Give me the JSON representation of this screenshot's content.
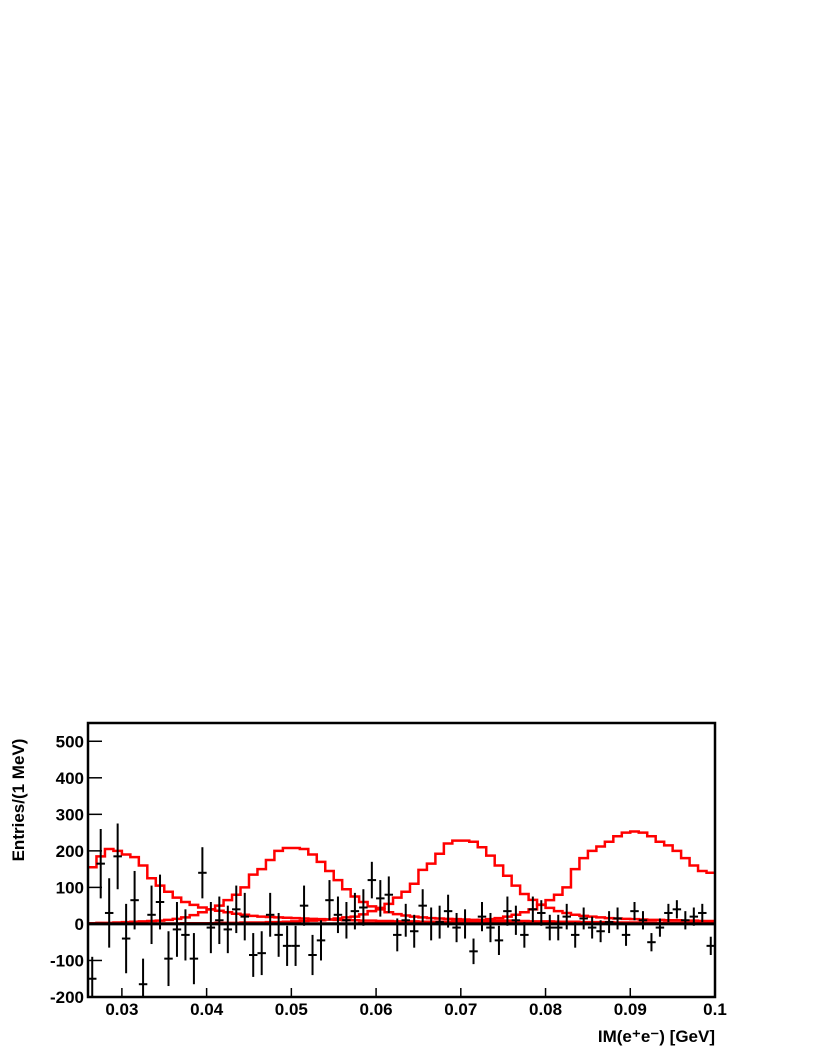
{
  "chart_data": {
    "type": "histogram",
    "xlabel": "IM(e⁺e⁻) [GeV]",
    "ylabel": "Entries/(1 MeV)",
    "xlim": [
      0.026,
      0.1
    ],
    "ylim": [
      -200,
      550
    ],
    "xticks": [
      0.03,
      0.04,
      0.05,
      0.06,
      0.07,
      0.08,
      0.09,
      0.1
    ],
    "yticks": [
      -200,
      -100,
      0,
      100,
      200,
      300,
      400,
      500
    ],
    "zero_line": true,
    "x": [
      0.0265,
      0.0275,
      0.0285,
      0.0295,
      0.0305,
      0.0315,
      0.0325,
      0.0335,
      0.0345,
      0.0355,
      0.0365,
      0.0375,
      0.0385,
      0.0395,
      0.0405,
      0.0415,
      0.0425,
      0.0435,
      0.0445,
      0.0455,
      0.0465,
      0.0475,
      0.0485,
      0.0495,
      0.0505,
      0.0515,
      0.0525,
      0.0535,
      0.0545,
      0.0555,
      0.0565,
      0.0575,
      0.0585,
      0.0595,
      0.0605,
      0.0615,
      0.0625,
      0.0635,
      0.0645,
      0.0655,
      0.0665,
      0.0675,
      0.0685,
      0.0695,
      0.0705,
      0.0715,
      0.0725,
      0.0735,
      0.0745,
      0.0755,
      0.0765,
      0.0775,
      0.0785,
      0.0795,
      0.0805,
      0.0815,
      0.0825,
      0.0835,
      0.0845,
      0.0855,
      0.0865,
      0.0875,
      0.0885,
      0.0895,
      0.0905,
      0.0915,
      0.0925,
      0.0935,
      0.0945,
      0.0955,
      0.0965,
      0.0975,
      0.0985,
      0.0995
    ],
    "series": [
      {
        "color": "#ff0000",
        "style": "step",
        "values": [
          155,
          185,
          205,
          200,
          190,
          183,
          160,
          125,
          105,
          88,
          72,
          60,
          52,
          45,
          40,
          36,
          32,
          28,
          25,
          22,
          20,
          19,
          18,
          17,
          16,
          15,
          14,
          13,
          12,
          11,
          10,
          10,
          9,
          9,
          8,
          8,
          7,
          7,
          7,
          6,
          6,
          6,
          5,
          5,
          5,
          5,
          4,
          4,
          4,
          4,
          4,
          3,
          3,
          3,
          3,
          3,
          3,
          3,
          2,
          2,
          2,
          2,
          2,
          2,
          2,
          2,
          2,
          2,
          2,
          1,
          1,
          1,
          1,
          1
        ]
      },
      {
        "color": "#ff0000",
        "style": "step",
        "values": [
          2,
          3,
          3,
          4,
          5,
          6,
          7,
          8,
          9,
          11,
          14,
          18,
          24,
          32,
          40,
          50,
          65,
          80,
          100,
          135,
          150,
          175,
          200,
          208,
          208,
          205,
          190,
          170,
          145,
          120,
          95,
          75,
          60,
          48,
          40,
          32,
          27,
          23,
          20,
          18,
          16,
          15,
          14,
          13,
          12,
          11,
          10,
          10,
          9,
          9,
          8,
          8,
          7,
          7,
          7,
          6,
          6,
          6,
          5,
          5,
          5,
          5,
          4,
          4,
          4,
          4,
          4,
          3,
          3,
          3,
          3,
          3,
          3,
          2
        ]
      },
      {
        "color": "#ff0000",
        "style": "step",
        "values": [
          1,
          1,
          1,
          1,
          1,
          1,
          1,
          1,
          1,
          1,
          1,
          2,
          2,
          2,
          2,
          3,
          3,
          3,
          4,
          4,
          4,
          5,
          5,
          6,
          7,
          8,
          9,
          10,
          12,
          15,
          18,
          20,
          26,
          35,
          44,
          55,
          72,
          88,
          110,
          148,
          165,
          192,
          220,
          228,
          228,
          225,
          210,
          187,
          160,
          132,
          105,
          82,
          66,
          53,
          44,
          35,
          30,
          25,
          22,
          20,
          18,
          16,
          15,
          14,
          13,
          12,
          11,
          11,
          10,
          10,
          9,
          9,
          8,
          8
        ]
      },
      {
        "color": "#ff0000",
        "style": "step",
        "values": [
          1,
          1,
          1,
          1,
          1,
          1,
          1,
          1,
          1,
          1,
          1,
          1,
          1,
          1,
          1,
          1,
          1,
          1,
          1,
          1,
          1,
          1,
          1,
          1,
          1,
          1,
          1,
          1,
          1,
          1,
          1,
          1,
          2,
          2,
          2,
          2,
          3,
          3,
          3,
          4,
          4,
          5,
          6,
          7,
          8,
          9,
          11,
          13,
          16,
          20,
          25,
          32,
          40,
          52,
          65,
          80,
          100,
          150,
          180,
          200,
          212,
          225,
          240,
          250,
          253,
          250,
          240,
          225,
          215,
          200,
          180,
          160,
          145,
          140
        ]
      },
      {
        "color": "#000000",
        "style": "errorbar",
        "values": [
          -150,
          165,
          30,
          185,
          -40,
          65,
          -165,
          25,
          60,
          -95,
          -15,
          -30,
          -95,
          140,
          -10,
          10,
          -15,
          40,
          20,
          -85,
          -80,
          25,
          -30,
          -60,
          -60,
          50,
          -85,
          -45,
          65,
          25,
          10,
          35,
          45,
          120,
          70,
          80,
          -30,
          10,
          -20,
          50,
          0,
          5,
          35,
          -10,
          0,
          -75,
          20,
          -10,
          -45,
          35,
          10,
          -30,
          40,
          30,
          -10,
          -10,
          20,
          -30,
          15,
          -10,
          -20,
          5,
          15,
          -30,
          35,
          10,
          -50,
          -10,
          30,
          40,
          10,
          20,
          30,
          -60
        ],
        "errors": [
          60,
          95,
          95,
          90,
          95,
          80,
          70,
          80,
          75,
          75,
          75,
          70,
          70,
          70,
          70,
          65,
          65,
          65,
          65,
          60,
          60,
          60,
          60,
          55,
          55,
          55,
          55,
          55,
          55,
          50,
          50,
          50,
          50,
          50,
          50,
          50,
          45,
          45,
          45,
          45,
          45,
          45,
          45,
          40,
          40,
          35,
          40,
          40,
          40,
          40,
          40,
          35,
          35,
          35,
          35,
          35,
          35,
          35,
          30,
          30,
          30,
          30,
          30,
          30,
          25,
          25,
          25,
          25,
          25,
          25,
          25,
          25,
          25,
          25
        ]
      }
    ]
  }
}
